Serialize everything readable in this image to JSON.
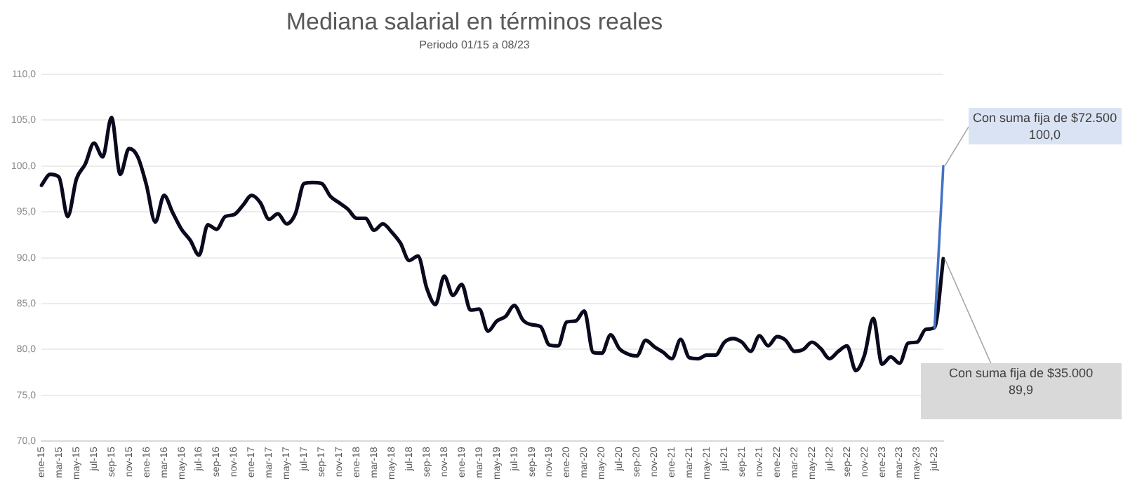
{
  "chart_data": {
    "type": "line",
    "title": "Mediana salarial en términos reales",
    "subtitle": "Periodo 01/15 a 08/23",
    "categories": [
      "ene-15",
      null,
      "mar-15",
      null,
      "may-15",
      null,
      "jul-15",
      null,
      "sep-15",
      null,
      "nov-15",
      null,
      "ene-16",
      null,
      "mar-16",
      null,
      "may-16",
      null,
      "jul-16",
      null,
      "sep-16",
      null,
      "nov-16",
      null,
      "ene-17",
      null,
      "mar-17",
      null,
      "may-17",
      null,
      "jul-17",
      null,
      "sep-17",
      null,
      "nov-17",
      null,
      "ene-18",
      null,
      "mar-18",
      null,
      "may-18",
      null,
      "jul-18",
      null,
      "sep-18",
      null,
      "nov-18",
      null,
      "ene-19",
      null,
      "mar-19",
      null,
      "may-19",
      null,
      "jul-19",
      null,
      "sep-19",
      null,
      "nov-19",
      null,
      "ene-20",
      null,
      "mar-20",
      null,
      "may-20",
      null,
      "jul-20",
      null,
      "sep-20",
      null,
      "nov-20",
      null,
      "ene-21",
      null,
      "mar-21",
      null,
      "may-21",
      null,
      "jul-21",
      null,
      "sep-21",
      null,
      "nov-21",
      null,
      "ene-22",
      null,
      "mar-22",
      null,
      "may-22",
      null,
      "jul-22",
      null,
      "sep-22",
      null,
      "nov-22",
      null,
      "ene-23",
      null,
      "mar-23",
      null,
      "may-23",
      null,
      "jul-23",
      null
    ],
    "series": [
      {
        "color": "#4472c4",
        "values": [
          null,
          null,
          null,
          null,
          null,
          null,
          null,
          null,
          null,
          null,
          null,
          null,
          null,
          null,
          null,
          null,
          null,
          null,
          null,
          null,
          null,
          null,
          null,
          null,
          null,
          null,
          null,
          null,
          null,
          null,
          null,
          null,
          null,
          null,
          null,
          null,
          null,
          null,
          null,
          null,
          null,
          null,
          null,
          null,
          null,
          null,
          null,
          null,
          null,
          null,
          null,
          null,
          null,
          null,
          null,
          null,
          null,
          null,
          null,
          null,
          null,
          null,
          null,
          null,
          null,
          null,
          null,
          null,
          null,
          null,
          null,
          null,
          null,
          null,
          null,
          null,
          null,
          null,
          null,
          null,
          null,
          null,
          null,
          null,
          null,
          null,
          null,
          null,
          null,
          null,
          null,
          null,
          null,
          null,
          null,
          null,
          null,
          null,
          null,
          null,
          null,
          null,
          82.4,
          100.0
        ]
      },
      {
        "color": "#0a0a1e",
        "values": [
          97.9,
          99.1,
          98.8,
          94.5,
          98.6,
          100.2,
          102.5,
          101.0,
          105.3,
          99.1,
          101.9,
          101.0,
          97.9,
          93.9,
          96.8,
          94.9,
          93.1,
          91.9,
          90.3,
          93.6,
          93.1,
          94.5,
          94.7,
          95.7,
          96.8,
          96.0,
          94.2,
          94.8,
          93.7,
          94.8,
          98.1,
          98.2,
          98.1,
          96.7,
          96.0,
          95.3,
          94.3,
          94.3,
          93.0,
          93.7,
          92.8,
          91.6,
          89.7,
          90.2,
          86.7,
          84.9,
          88.0,
          85.9,
          87.1,
          84.3,
          84.4,
          82.0,
          83.1,
          83.6,
          84.8,
          83.2,
          82.7,
          82.5,
          80.5,
          80.4,
          83.0,
          83.1,
          84.2,
          79.7,
          79.6,
          81.6,
          80.1,
          79.5,
          79.3,
          81.0,
          80.3,
          79.7,
          79.0,
          81.1,
          79.1,
          79.0,
          79.4,
          79.4,
          80.8,
          81.2,
          80.8,
          79.8,
          81.5,
          80.4,
          81.4,
          81.0,
          79.8,
          80.0,
          80.8,
          80.1,
          79.0,
          79.8,
          80.4,
          77.7,
          79.4,
          83.4,
          78.4,
          79.2,
          78.5,
          80.7,
          80.8,
          82.2,
          82.4,
          89.9
        ]
      }
    ],
    "annotations": [
      "Con suma fija de $72.500\n100,0",
      "Con suma fija de $35.000\n89,9"
    ],
    "ylim": [
      70,
      110
    ],
    "yticks": [
      {
        "value": 70,
        "label": "70,0"
      },
      {
        "value": 75,
        "label": "75,0"
      },
      {
        "value": 80,
        "label": "80,0"
      },
      {
        "value": 85,
        "label": "85,0"
      },
      {
        "value": 90,
        "label": "90,0"
      },
      {
        "value": 95,
        "label": "95,0"
      },
      {
        "value": 100,
        "label": "100,0"
      },
      {
        "value": 105,
        "label": "105,0"
      },
      {
        "value": 110,
        "label": "110,0"
      }
    ],
    "grid": "y",
    "legend": false,
    "marker": "none",
    "line_style": "solid"
  }
}
